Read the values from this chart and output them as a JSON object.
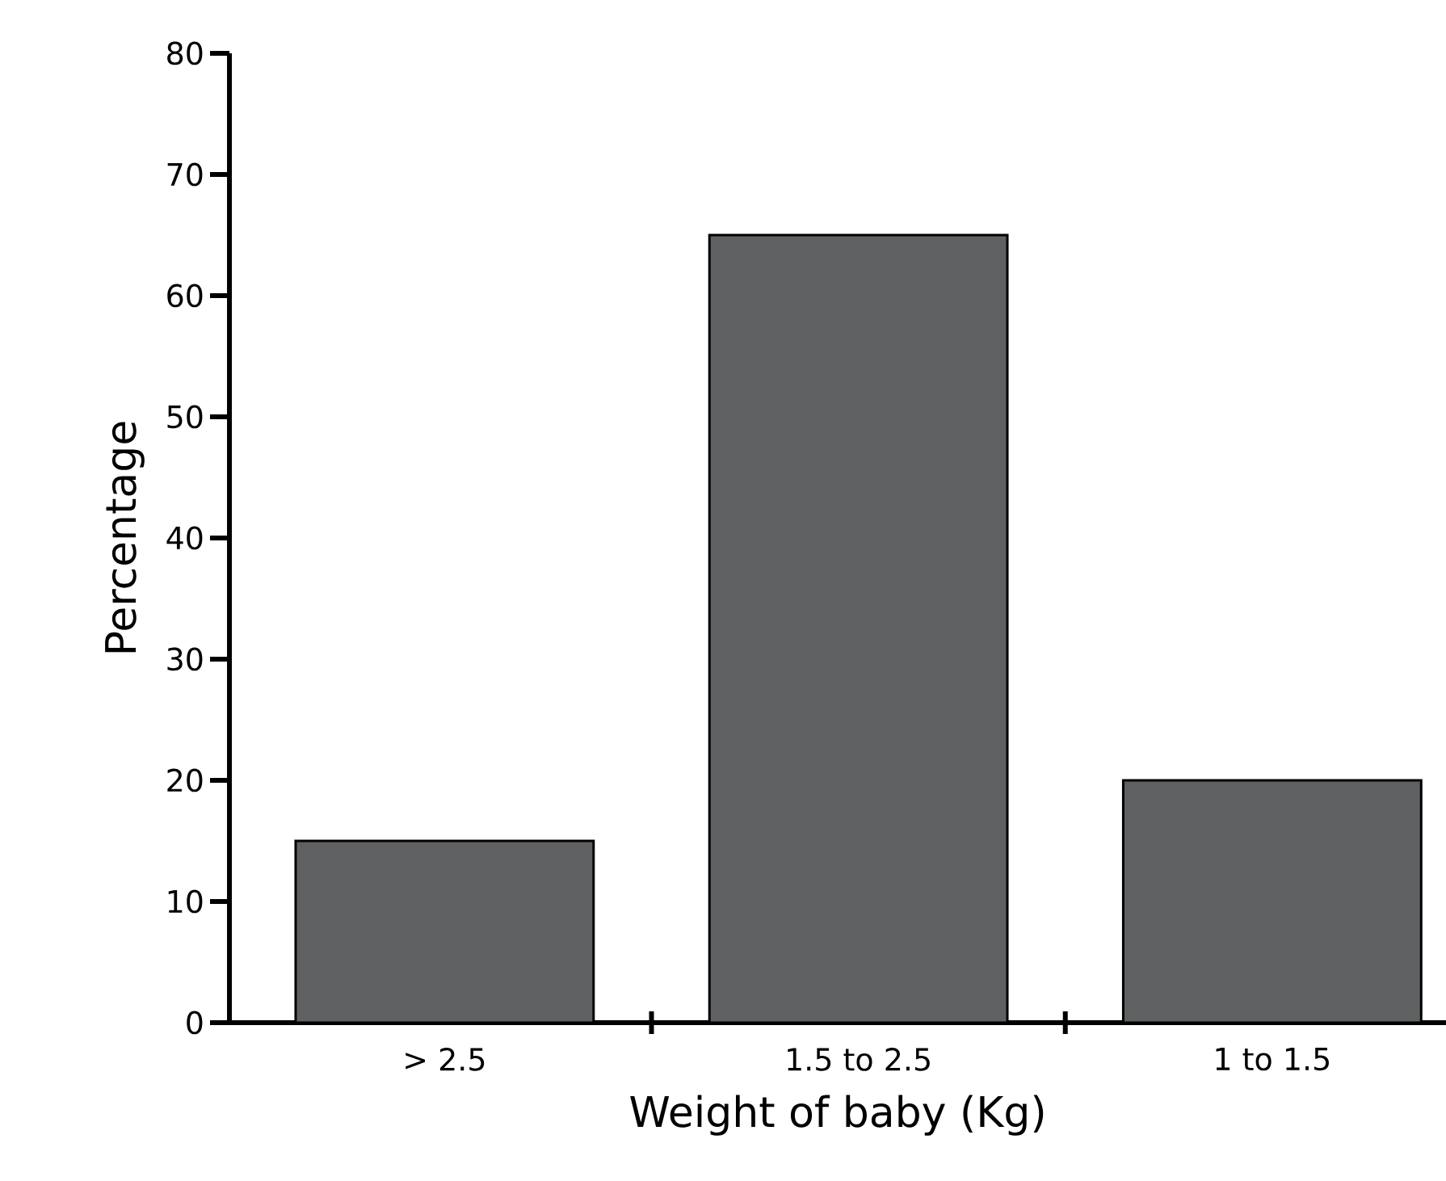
{
  "chart_data": {
    "type": "bar",
    "xlabel": "Weight of baby (Kg)",
    "ylabel": "Percentage",
    "categories": [
      "> 2.5",
      "1.5 to 2.5",
      "1 to 1.5"
    ],
    "values": [
      15,
      65,
      20
    ],
    "color": "#5f6062",
    "ylim": [
      0,
      80
    ],
    "yticks": [
      0,
      10,
      20,
      30,
      40,
      50,
      60,
      70,
      80
    ]
  }
}
